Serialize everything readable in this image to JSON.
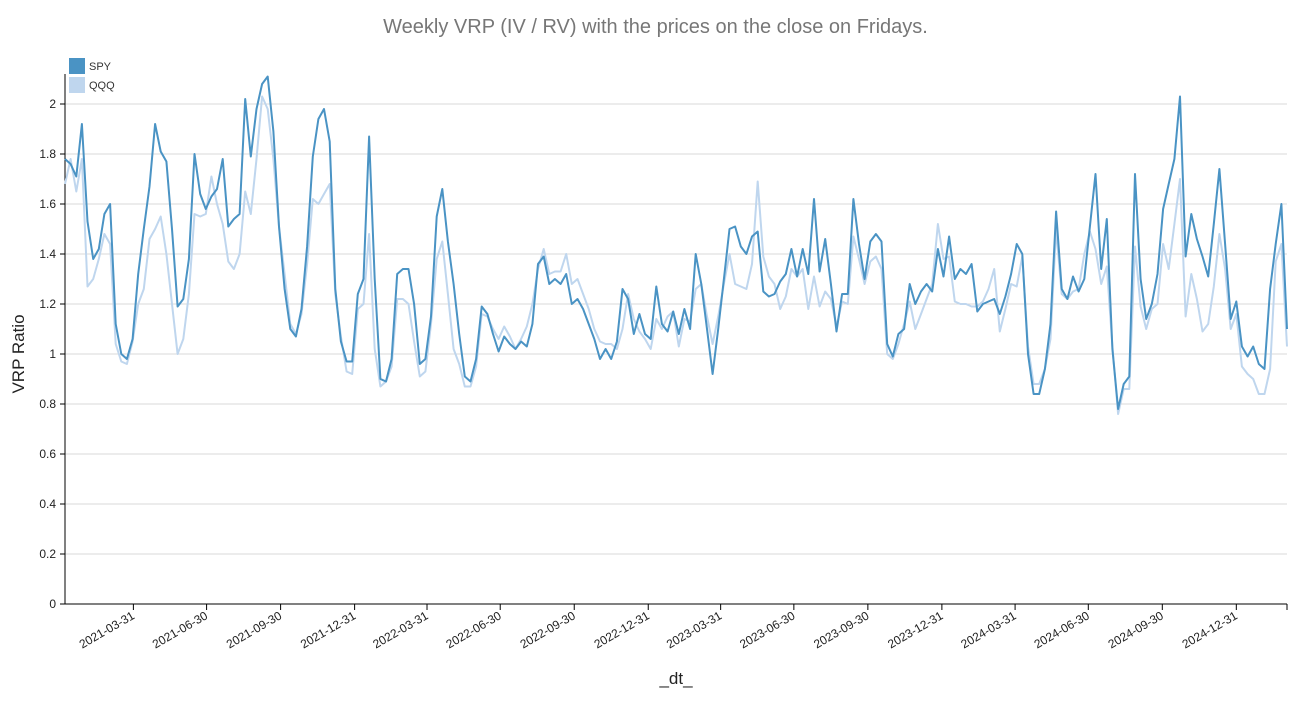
{
  "chart_data": {
    "type": "line",
    "title": "Weekly VRP  (IV / RV) with the prices on the close on Fridays.",
    "xlabel": "_dt_",
    "ylabel": "VRP Ratio",
    "x_unit": "week index (weekly Friday closes)",
    "ylim": [
      0,
      2.12
    ],
    "yticks": [
      "0",
      "0.2",
      "0.4",
      "0.6",
      "0.8",
      "1",
      "1.2",
      "1.4",
      "1.6",
      "1.8",
      "2"
    ],
    "xticks": [
      "2021-03-31",
      "2021-06-30",
      "2021-09-30",
      "2021-12-31",
      "2022-03-31",
      "2022-06-30",
      "2022-09-30",
      "2022-12-31",
      "2023-03-31",
      "2023-06-30",
      "2023-09-30",
      "2023-12-31",
      "2024-03-31",
      "2024-06-30",
      "2024-09-30",
      "2024-12-31"
    ],
    "grid": "horizontal",
    "legend_position": "top-left",
    "series": [
      {
        "name": "SPY",
        "color": "#4a93c4",
        "values": [
          1.78,
          1.76,
          1.71,
          1.92,
          1.53,
          1.38,
          1.42,
          1.56,
          1.6,
          1.12,
          1.0,
          0.98,
          1.06,
          1.32,
          1.5,
          1.67,
          1.92,
          1.81,
          1.77,
          1.5,
          1.19,
          1.22,
          1.38,
          1.8,
          1.64,
          1.58,
          1.63,
          1.66,
          1.78,
          1.51,
          1.54,
          1.56,
          2.02,
          1.79,
          1.98,
          2.08,
          2.11,
          1.89,
          1.51,
          1.26,
          1.1,
          1.07,
          1.18,
          1.43,
          1.79,
          1.94,
          1.98,
          1.85,
          1.26,
          1.05,
          0.97,
          0.97,
          1.24,
          1.3,
          1.87,
          1.3,
          0.9,
          0.89,
          0.98,
          1.32,
          1.34,
          1.34,
          1.2,
          0.96,
          0.98,
          1.15,
          1.55,
          1.66,
          1.45,
          1.28,
          1.08,
          0.91,
          0.89,
          0.98,
          1.19,
          1.16,
          1.08,
          1.01,
          1.07,
          1.04,
          1.02,
          1.05,
          1.03,
          1.12,
          1.36,
          1.39,
          1.28,
          1.3,
          1.28,
          1.32,
          1.2,
          1.22,
          1.18,
          1.12,
          1.06,
          0.98,
          1.02,
          0.98,
          1.05,
          1.26,
          1.22,
          1.08,
          1.16,
          1.08,
          1.06,
          1.27,
          1.12,
          1.09,
          1.17,
          1.08,
          1.18,
          1.1,
          1.4,
          1.28,
          1.1,
          0.92,
          1.1,
          1.3,
          1.5,
          1.51,
          1.43,
          1.4,
          1.47,
          1.49,
          1.25,
          1.23,
          1.24,
          1.29,
          1.32,
          1.42,
          1.31,
          1.42,
          1.32,
          1.62,
          1.33,
          1.46,
          1.28,
          1.09,
          1.24,
          1.24,
          1.62,
          1.44,
          1.3,
          1.45,
          1.48,
          1.45,
          1.04,
          0.99,
          1.08,
          1.1,
          1.28,
          1.2,
          1.25,
          1.28,
          1.25,
          1.42,
          1.31,
          1.47,
          1.3,
          1.34,
          1.32,
          1.36,
          1.17,
          1.2,
          1.21,
          1.22,
          1.16,
          1.23,
          1.32,
          1.44,
          1.4,
          1.0,
          0.84,
          0.84,
          0.94,
          1.12,
          1.57,
          1.26,
          1.22,
          1.31,
          1.25,
          1.3,
          1.51,
          1.72,
          1.34,
          1.54,
          1.02,
          0.78,
          0.88,
          0.91,
          1.72,
          1.3,
          1.14,
          1.2,
          1.32,
          1.58,
          1.68,
          1.78,
          2.03,
          1.39,
          1.56,
          1.46,
          1.39,
          1.31,
          1.52,
          1.74,
          1.44,
          1.14,
          1.21,
          1.03,
          0.99,
          1.03,
          0.96,
          0.94,
          1.26,
          1.44,
          1.6,
          1.1
        ]
      },
      {
        "name": "QQQ",
        "color": "#bfd6ee",
        "values": [
          1.68,
          1.78,
          1.65,
          1.78,
          1.27,
          1.3,
          1.38,
          1.48,
          1.44,
          1.04,
          0.97,
          0.96,
          1.05,
          1.2,
          1.26,
          1.46,
          1.5,
          1.55,
          1.4,
          1.2,
          1.0,
          1.06,
          1.24,
          1.56,
          1.55,
          1.56,
          1.71,
          1.6,
          1.52,
          1.37,
          1.34,
          1.4,
          1.65,
          1.56,
          1.78,
          2.03,
          1.98,
          1.78,
          1.51,
          1.32,
          1.12,
          1.08,
          1.16,
          1.36,
          1.62,
          1.6,
          1.64,
          1.68,
          1.24,
          1.07,
          0.93,
          0.92,
          1.18,
          1.2,
          1.48,
          1.02,
          0.87,
          0.89,
          0.95,
          1.22,
          1.22,
          1.2,
          1.05,
          0.91,
          0.93,
          1.12,
          1.38,
          1.45,
          1.24,
          1.02,
          0.96,
          0.87,
          0.87,
          0.95,
          1.16,
          1.15,
          1.1,
          1.06,
          1.11,
          1.07,
          1.02,
          1.06,
          1.11,
          1.2,
          1.34,
          1.42,
          1.32,
          1.33,
          1.33,
          1.4,
          1.28,
          1.3,
          1.24,
          1.18,
          1.1,
          1.05,
          1.04,
          1.04,
          1.02,
          1.1,
          1.24,
          1.14,
          1.09,
          1.06,
          1.02,
          1.14,
          1.1,
          1.15,
          1.17,
          1.03,
          1.14,
          1.13,
          1.26,
          1.28,
          1.15,
          1.04,
          1.15,
          1.28,
          1.4,
          1.28,
          1.27,
          1.26,
          1.36,
          1.69,
          1.39,
          1.31,
          1.28,
          1.18,
          1.23,
          1.34,
          1.31,
          1.34,
          1.18,
          1.31,
          1.19,
          1.25,
          1.22,
          1.11,
          1.21,
          1.2,
          1.47,
          1.38,
          1.28,
          1.37,
          1.39,
          1.34,
          1.0,
          0.98,
          1.04,
          1.12,
          1.21,
          1.1,
          1.16,
          1.22,
          1.28,
          1.52,
          1.38,
          1.39,
          1.21,
          1.2,
          1.2,
          1.19,
          1.19,
          1.21,
          1.26,
          1.34,
          1.09,
          1.18,
          1.28,
          1.27,
          1.39,
          1.03,
          0.88,
          0.88,
          0.94,
          1.06,
          1.5,
          1.24,
          1.22,
          1.25,
          1.26,
          1.4,
          1.49,
          1.42,
          1.28,
          1.35,
          1.03,
          0.76,
          0.86,
          0.86,
          1.43,
          1.19,
          1.1,
          1.18,
          1.2,
          1.44,
          1.34,
          1.52,
          1.7,
          1.15,
          1.32,
          1.22,
          1.09,
          1.12,
          1.27,
          1.48,
          1.34,
          1.1,
          1.16,
          0.95,
          0.92,
          0.9,
          0.84,
          0.84,
          0.94,
          1.37,
          1.44,
          1.03
        ]
      }
    ]
  }
}
